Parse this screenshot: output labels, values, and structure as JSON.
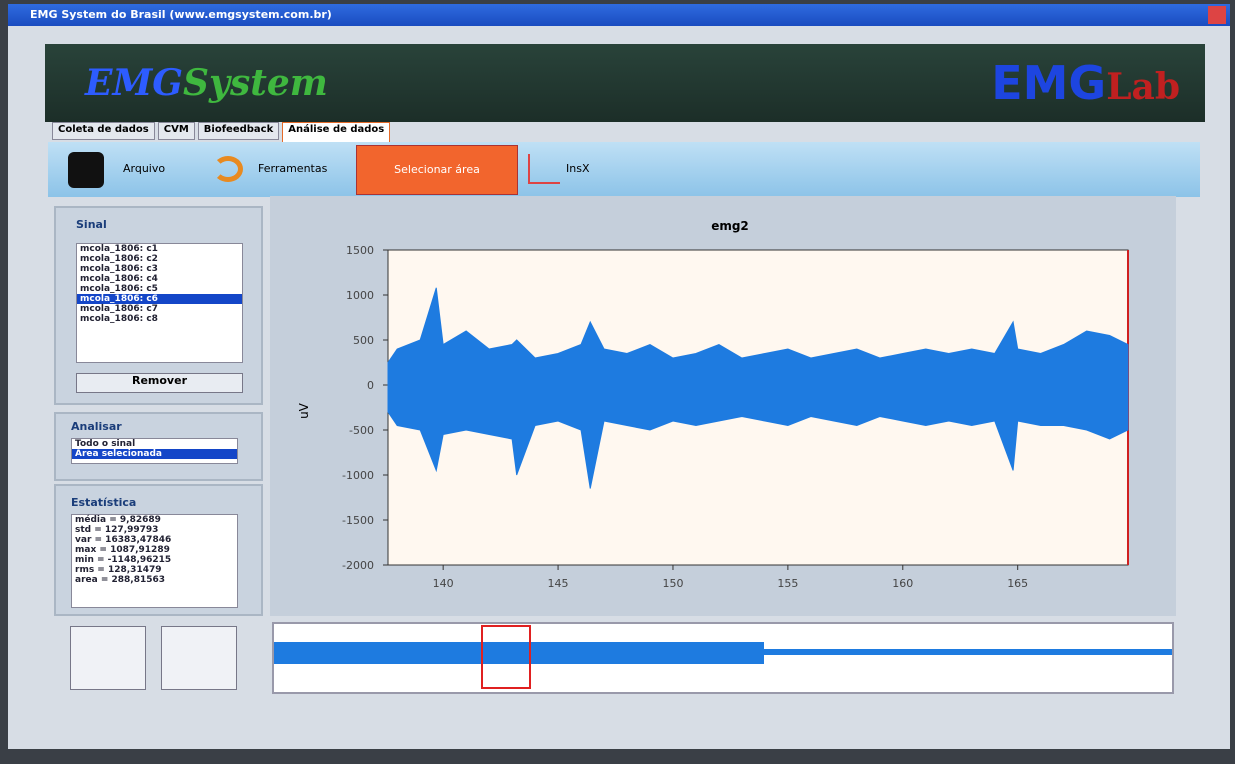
{
  "window": {
    "title": "EMG System do Brasil (www.emgsystem.com.br)"
  },
  "header": {
    "logo_left_a": "EMG",
    "logo_left_b": "System",
    "logo_right_a": "EMG",
    "logo_right_b": "Lab"
  },
  "tabs": [
    "Coleta de dados",
    "CVM",
    "Biofeedback",
    "Análise de dados"
  ],
  "toolbar": [
    "Arquivo",
    "Ferramentas",
    "Selecionar área",
    "InsX"
  ],
  "signal_panel": {
    "title": "Sinal",
    "items": [
      "mcola_1806: c1",
      "mcola_1806: c2",
      "mcola_1806: c3",
      "mcola_1806: c4",
      "mcola_1806: c5",
      "mcola_1806: c6",
      "mcola_1806: c7",
      "mcola_1806: c8"
    ],
    "button": "Remover"
  },
  "analyze_panel": {
    "title": "Analisar",
    "items": [
      "Todo o sinal",
      "Área selecionada"
    ]
  },
  "stats_panel": {
    "title": "Estatística",
    "items": [
      "média = 9,82689",
      "std = 127,99793",
      "var = 16383,47846",
      "max = 1087,91289",
      "min = -1148,96215",
      "rms = 128,31479",
      "area = 288,81563"
    ]
  },
  "chart_data": {
    "type": "band",
    "title": "emg2",
    "y_label": "uV",
    "x": [
      137.6,
      138,
      139,
      139.7,
      140,
      141,
      142,
      143,
      143.2,
      144,
      145,
      146,
      146.4,
      147,
      148,
      149,
      150,
      151,
      152,
      153,
      154,
      155,
      156,
      157,
      158,
      159,
      160,
      161,
      162,
      163,
      164,
      164.8,
      165,
      166,
      167,
      168,
      169,
      169.8
    ],
    "series": [
      {
        "color": "#1e7be0",
        "values": [
          250,
          400,
          500,
          1080,
          450,
          600,
          400,
          450,
          500,
          300,
          350,
          450,
          700,
          400,
          350,
          450,
          300,
          350,
          450,
          300,
          350,
          400,
          300,
          350,
          400,
          300,
          350,
          400,
          350,
          400,
          350,
          700,
          400,
          350,
          450,
          600,
          550,
          450
        ]
      },
      {
        "color": "#1e7be0",
        "values": [
          -300,
          -450,
          -500,
          -950,
          -550,
          -500,
          -550,
          -600,
          -1000,
          -450,
          -400,
          -500,
          -1150,
          -400,
          -450,
          -500,
          -400,
          -450,
          -400,
          -350,
          -400,
          -450,
          -350,
          -400,
          -450,
          -350,
          -400,
          -450,
          -400,
          -450,
          -400,
          -950,
          -400,
          -450,
          -450,
          -500,
          -600,
          -500
        ]
      }
    ],
    "xlim": [
      137.6,
      169.8
    ],
    "xticks": [
      140,
      145,
      150,
      155,
      160,
      165
    ],
    "ylim": [
      -2000,
      1500
    ],
    "yticks": [
      -2000,
      -1500,
      -1000,
      -500,
      0,
      500,
      1000,
      1500
    ]
  }
}
